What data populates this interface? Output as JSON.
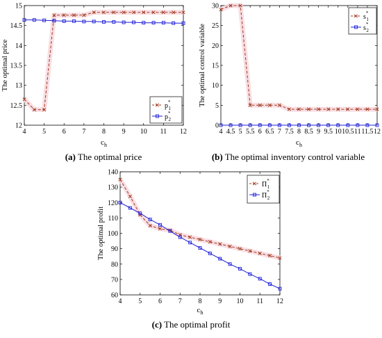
{
  "chart_data": [
    {
      "id": "a",
      "type": "line",
      "caption_label": "(a)",
      "caption_text": "The optimal price",
      "xlabel": "c_h",
      "ylabel": "The optimal price",
      "xlim": [
        4,
        12
      ],
      "ylim": [
        12,
        15
      ],
      "xticks": [
        4,
        5,
        6,
        7,
        8,
        9,
        10,
        11,
        12
      ],
      "yticks": [
        12,
        12.5,
        13,
        13.5,
        14,
        14.5,
        15
      ],
      "legend_position": "bottom-right",
      "grid": false,
      "x": [
        4,
        4.5,
        5,
        5.5,
        6,
        6.5,
        7,
        7.5,
        8,
        8.5,
        9,
        9.5,
        10,
        10.5,
        11,
        11.5,
        12
      ],
      "series": [
        {
          "name": "p1*",
          "legend_base": "p",
          "legend_sub": "1",
          "legend_sup": "*",
          "values": [
            12.65,
            12.39,
            12.39,
            14.76,
            14.76,
            14.76,
            14.76,
            14.83,
            14.83,
            14.83,
            14.83,
            14.83,
            14.83,
            14.83,
            14.83,
            14.83,
            14.83
          ],
          "color": "#a0391e",
          "marker": "x",
          "dash": true,
          "band": true
        },
        {
          "name": "p2*",
          "legend_base": "p",
          "legend_sub": "2",
          "legend_sup": "*",
          "values": [
            14.64,
            14.64,
            14.63,
            14.62,
            14.61,
            14.61,
            14.6,
            14.6,
            14.59,
            14.59,
            14.58,
            14.58,
            14.57,
            14.57,
            14.57,
            14.56,
            14.56
          ],
          "color": "#1f1fd8",
          "marker": "square",
          "dash": false,
          "band": false
        }
      ]
    },
    {
      "id": "b",
      "type": "line",
      "caption_label": "(b)",
      "caption_text": "The optimal inventory control variable",
      "xlabel": "c_h",
      "ylabel": "The optimal control variable",
      "xlim": [
        4,
        12
      ],
      "ylim": [
        0,
        30
      ],
      "xticks": [
        4,
        4.5,
        5,
        5.5,
        6,
        6.5,
        7,
        7.5,
        8,
        8.5,
        9,
        9.5,
        10,
        10.5,
        11,
        11.5,
        12
      ],
      "yticks": [
        0,
        5,
        10,
        15,
        20,
        25,
        30
      ],
      "legend_position": "top-right",
      "grid": false,
      "x": [
        4,
        4.5,
        5,
        5.5,
        6,
        6.5,
        7,
        7.5,
        8,
        8.5,
        9,
        9.5,
        10,
        10.5,
        11,
        11.5,
        12
      ],
      "series": [
        {
          "name": "s1*",
          "legend_base": "s",
          "legend_sub": "1",
          "legend_sup": "*",
          "values": [
            29,
            30,
            30,
            5,
            5,
            5,
            5,
            4,
            4,
            4,
            4,
            4,
            4,
            4,
            4,
            4,
            4
          ],
          "color": "#a0391e",
          "marker": "x",
          "dash": true,
          "band": true
        },
        {
          "name": "s2*",
          "legend_base": "s",
          "legend_sub": "2",
          "legend_sup": "*",
          "values": [
            0,
            0,
            0,
            0,
            0,
            0,
            0,
            0,
            0,
            0,
            0,
            0,
            0,
            0,
            0,
            0,
            0
          ],
          "color": "#1f1fd8",
          "marker": "square",
          "dash": false,
          "band": false
        }
      ]
    },
    {
      "id": "c",
      "type": "line",
      "caption_label": "(c)",
      "caption_text": "The optimal profit",
      "xlabel": "c_h",
      "ylabel": "The optimal profit",
      "xlim": [
        4,
        12
      ],
      "ylim": [
        60,
        140
      ],
      "xticks": [
        4,
        5,
        6,
        7,
        8,
        9,
        10,
        11,
        12
      ],
      "yticks": [
        60,
        70,
        80,
        90,
        100,
        110,
        120,
        130,
        140
      ],
      "legend_position": "top-right",
      "grid": false,
      "x": [
        4,
        4.5,
        5,
        5.5,
        6,
        6.5,
        7,
        7.5,
        8,
        8.5,
        9,
        9.5,
        10,
        10.5,
        11,
        11.5,
        12
      ],
      "series": [
        {
          "name": "Π1*",
          "legend_base": "Π",
          "legend_sub": "1",
          "legend_sup": "*",
          "values": [
            135,
            124,
            112,
            105,
            103,
            102,
            99,
            97.5,
            96,
            94.5,
            93,
            91.5,
            90,
            88.5,
            87,
            85.5,
            84
          ],
          "color": "#a0391e",
          "marker": "x",
          "dash": true,
          "band": true
        },
        {
          "name": "Π2*",
          "legend_base": "Π",
          "legend_sub": "2",
          "legend_sup": "*",
          "values": [
            120,
            116.5,
            113,
            109,
            105.5,
            101.5,
            97.5,
            94,
            90.5,
            87,
            83.5,
            80,
            77,
            73.5,
            70.5,
            67,
            64
          ],
          "color": "#1f1fd8",
          "marker": "square",
          "dash": false,
          "band": false
        }
      ]
    }
  ]
}
